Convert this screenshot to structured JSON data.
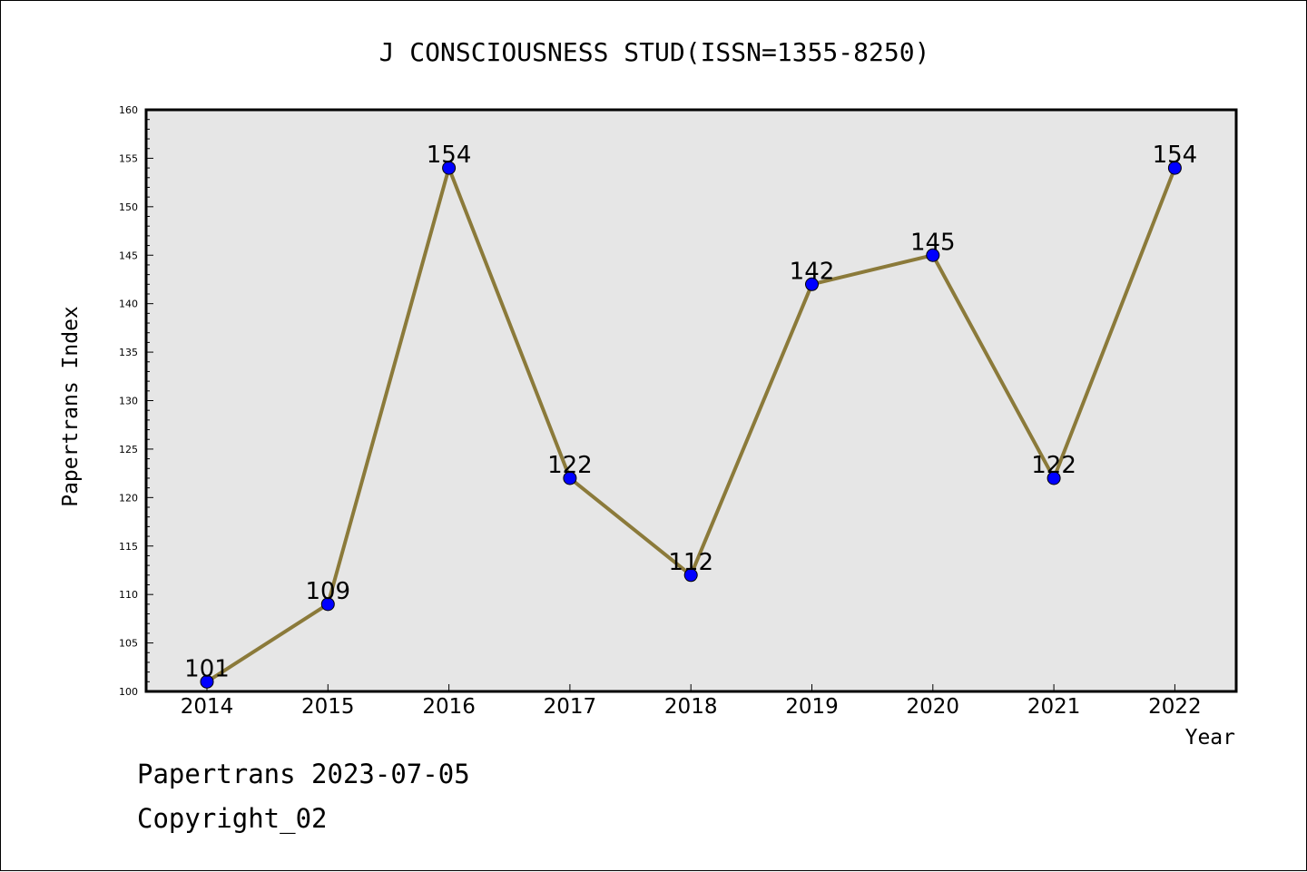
{
  "chart_data": {
    "type": "line",
    "title": "J CONSCIOUSNESS STUD(ISSN=1355-8250)",
    "xlabel": "Year",
    "ylabel": "Papertrans Index",
    "categories": [
      "2014",
      "2015",
      "2016",
      "2017",
      "2018",
      "2019",
      "2020",
      "2021",
      "2022"
    ],
    "series": [
      {
        "values": [
          101,
          109,
          154,
          122,
          112,
          142,
          145,
          122,
          154
        ]
      }
    ],
    "ylim": [
      100,
      160
    ],
    "yticks": [
      100,
      105,
      110,
      115,
      120,
      125,
      130,
      135,
      140,
      145,
      150,
      155,
      160
    ],
    "data_labels": true,
    "grid": false,
    "legend": "none",
    "colors": {
      "line": "#8b7a3a",
      "marker": "#0000ff",
      "plot_background": "#e6e6e6"
    }
  },
  "footer": {
    "date_line": "Papertrans 2023-07-05",
    "copyright_line": "Copyright_02"
  }
}
